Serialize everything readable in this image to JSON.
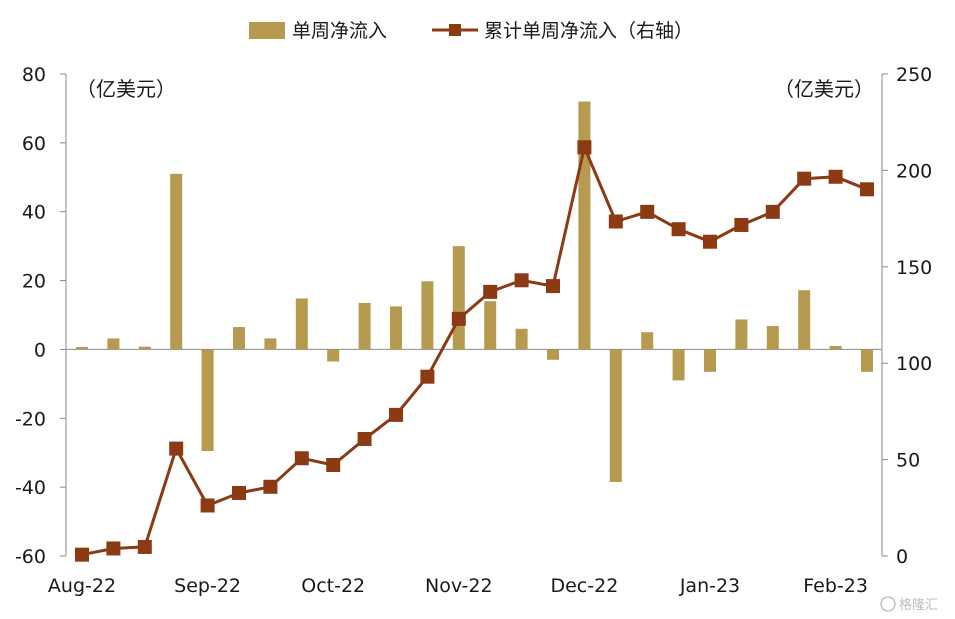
{
  "chart_data": {
    "type": "bar+line",
    "legend": {
      "bar_label": "单周净流入",
      "line_label": "累计单周净流入（右轴）",
      "placement": "top-center"
    },
    "left_axis": {
      "unit": "（亿美元）",
      "min": -60,
      "max": 80,
      "ticks": [
        80,
        60,
        40,
        20,
        0,
        -20,
        -40,
        -60
      ]
    },
    "right_axis": {
      "unit": "（亿美元）",
      "min": 0,
      "max": 250,
      "ticks": [
        250,
        200,
        150,
        100,
        50,
        0
      ]
    },
    "x_tick_labels": [
      "Aug-22",
      "Sep-22",
      "Oct-22",
      "Nov-22",
      "Dec-22",
      "Jan-23",
      "Feb-23"
    ],
    "x_tick_positions": [
      0,
      4,
      8,
      12,
      16,
      20,
      24
    ],
    "series": [
      {
        "name": "单周净流入",
        "type": "bar",
        "axis": "left",
        "values": [
          0.7,
          3.2,
          0.8,
          51,
          -29.5,
          6.5,
          3.2,
          14.8,
          -3.5,
          13.5,
          12.5,
          19.8,
          30,
          14,
          6,
          -3,
          72,
          -38.5,
          5,
          -9,
          -6.5,
          8.7,
          6.8,
          17.2,
          1,
          -6.5
        ]
      },
      {
        "name": "累计单周净流入（右轴）",
        "type": "line",
        "axis": "right",
        "values": [
          0.7,
          3.9,
          4.7,
          55.7,
          26.2,
          32.7,
          35.9,
          50.7,
          47.2,
          60.7,
          73.2,
          93,
          123,
          137,
          143,
          140,
          212,
          173.5,
          178.5,
          169.5,
          163,
          171.7,
          178.5,
          195.7,
          196.7,
          190.2
        ]
      }
    ],
    "colors": {
      "bar": "#b59a4f",
      "line": "#8b3a14",
      "axis": "#888888"
    },
    "grid": false
  },
  "watermark": {
    "text": "格隆汇"
  }
}
